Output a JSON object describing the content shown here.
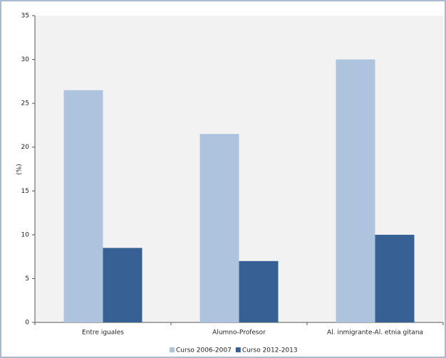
{
  "chart_data": {
    "type": "bar",
    "y_label": "(%)",
    "categories": [
      "Entre iguales",
      "Alumno-Profesor",
      "Al. inmigrante-Al. etnia gitana"
    ],
    "series": [
      {
        "name": "Curso 2006-2007",
        "color": "#adc3de",
        "values": [
          26.5,
          21.5,
          30
        ]
      },
      {
        "name": "Curso 2012-2013",
        "color": "#376194",
        "values": [
          8.5,
          7,
          10
        ]
      }
    ],
    "ylim": [
      0,
      35
    ],
    "yticks": [
      0,
      5,
      10,
      15,
      20,
      25,
      30,
      35
    ],
    "grid": false,
    "legend": "bottom"
  }
}
